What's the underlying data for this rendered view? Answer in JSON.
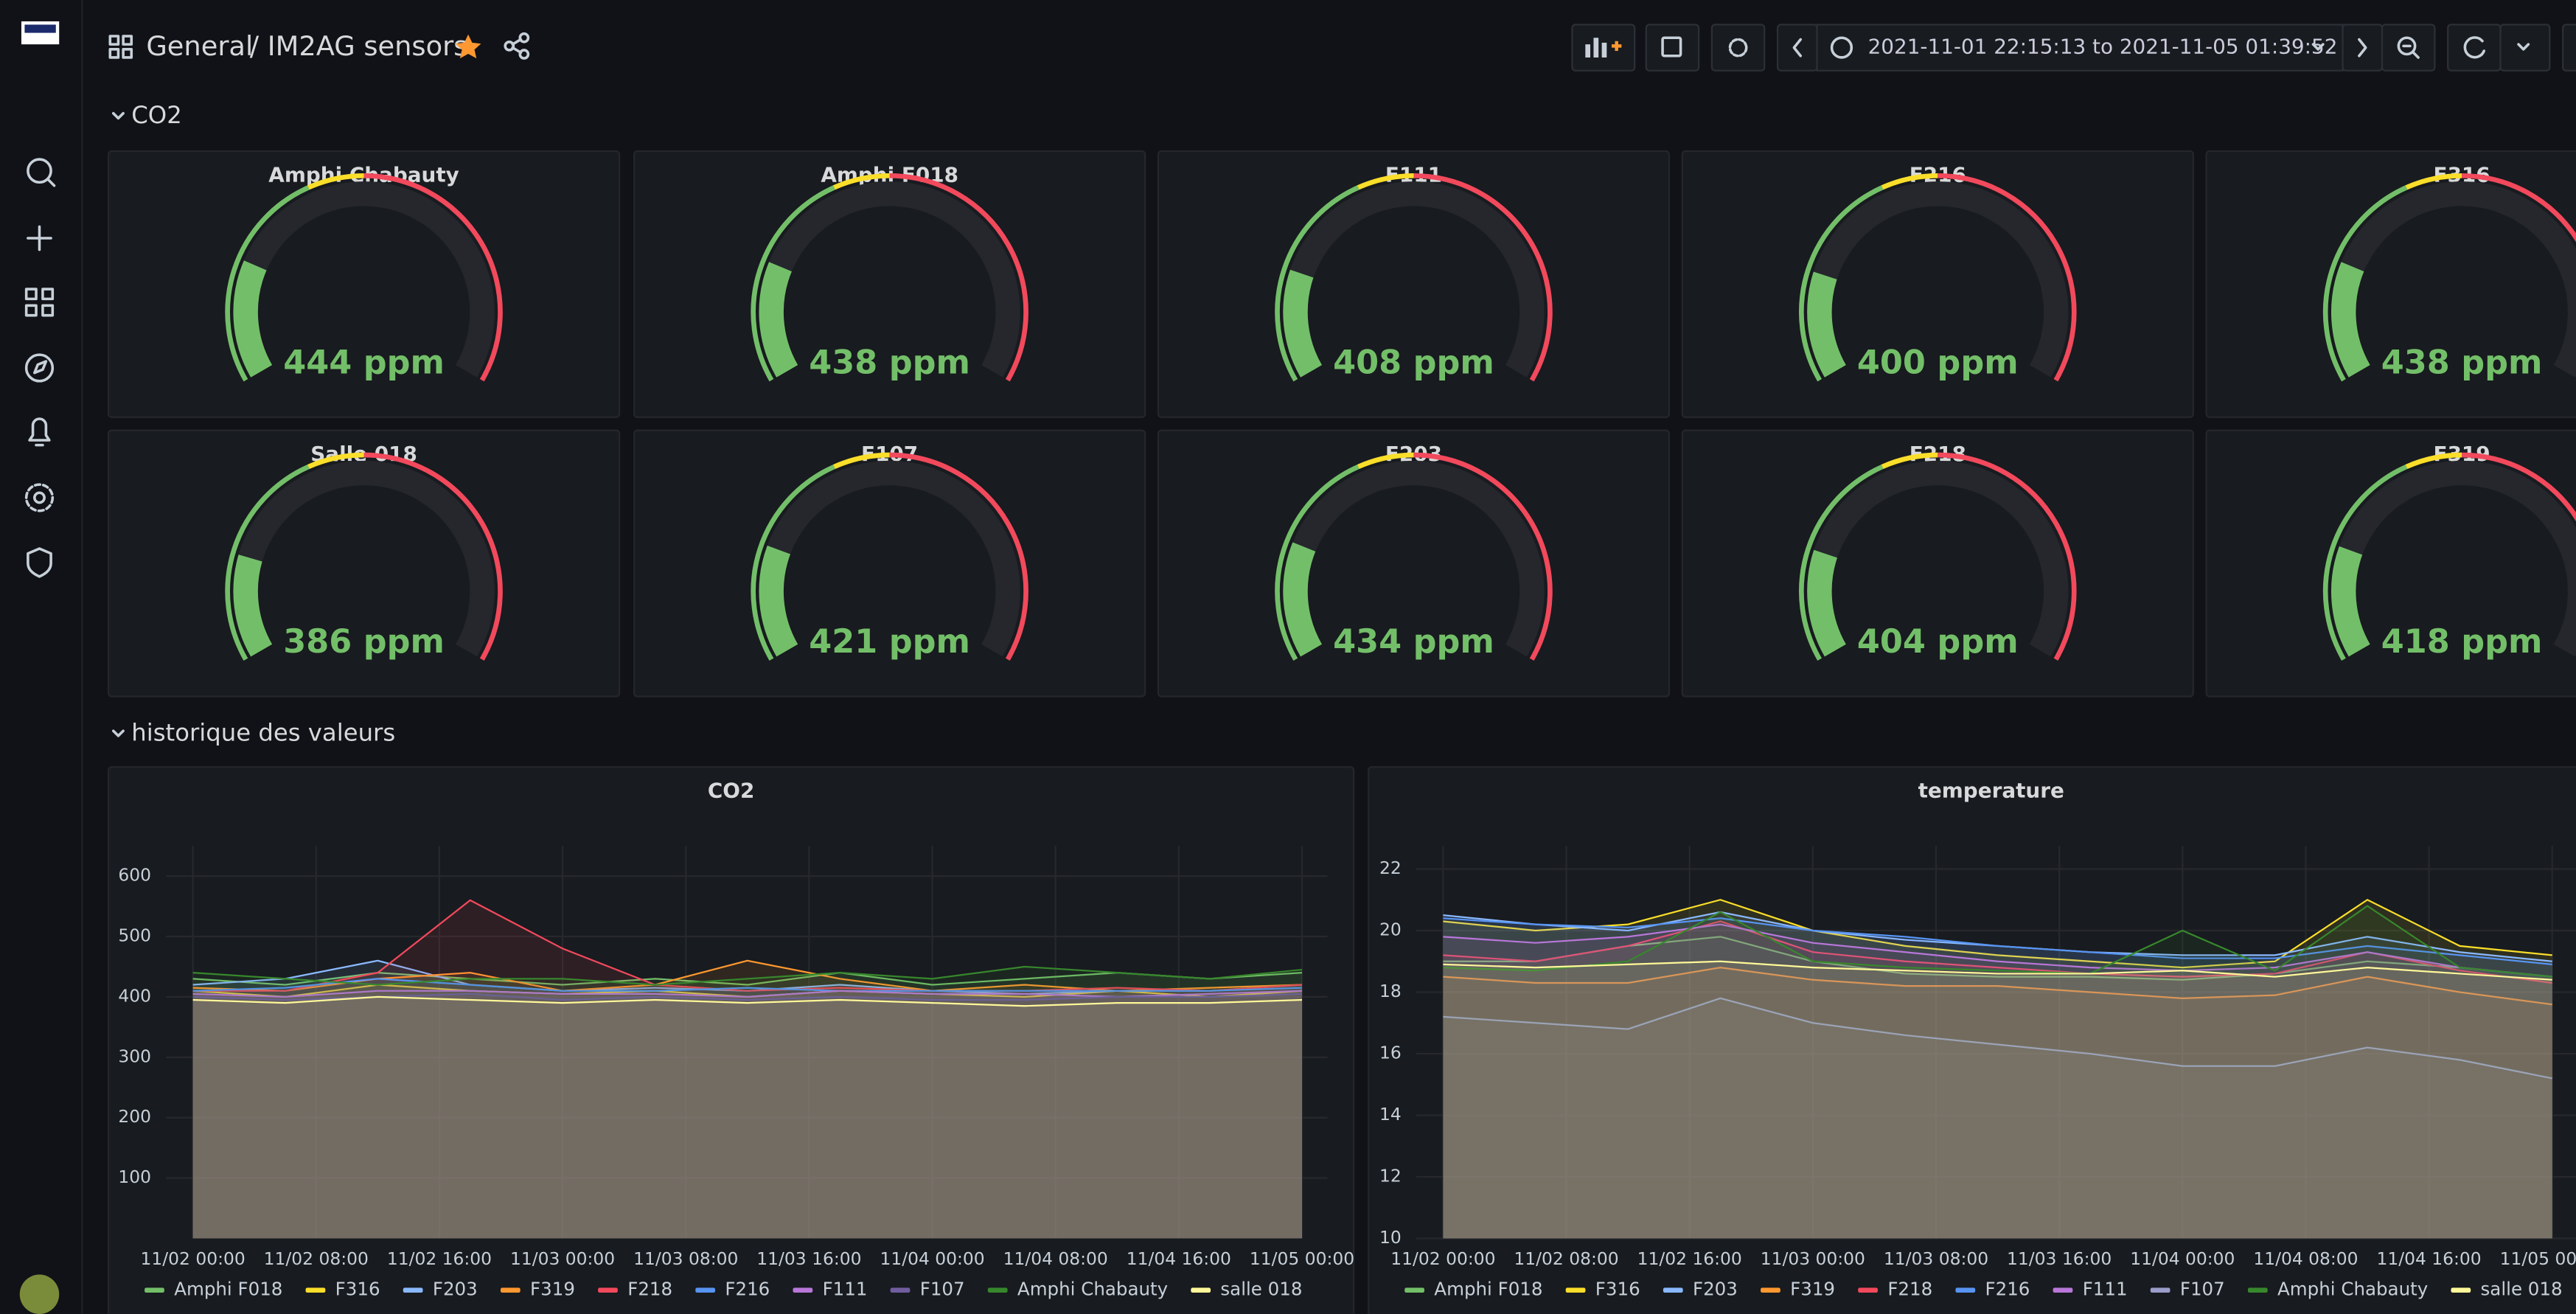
{
  "header": {
    "folder": "General",
    "title": "/ IM2AG sensors",
    "time_range": "2021-11-01 22:15:13 to 2021-11-05 01:39:52"
  },
  "rows": [
    {
      "title": "CO2"
    },
    {
      "title": "historique des valeurs"
    }
  ],
  "gauges": {
    "min": 0,
    "max": 2000,
    "track_color": "#25272c",
    "thresholds": [
      {
        "color": "#73bf69"
      },
      {
        "value": 800,
        "color": "#fade2a"
      },
      {
        "value": 1000,
        "color": "#f2495c"
      }
    ],
    "panels": [
      {
        "title": "Amphi Chabauty",
        "value": 444,
        "value_label": "444 ppm"
      },
      {
        "title": "Amphi F018",
        "value": 438,
        "value_label": "438 ppm"
      },
      {
        "title": "F111",
        "value": 408,
        "value_label": "408 ppm"
      },
      {
        "title": "F216",
        "value": 400,
        "value_label": "400 ppm"
      },
      {
        "title": "F316",
        "value": 438,
        "value_label": "438 ppm"
      },
      {
        "title": "Salle 018",
        "value": 386,
        "value_label": "386 ppm"
      },
      {
        "title": "F107",
        "value": 421,
        "value_label": "421 ppm"
      },
      {
        "title": "F203",
        "value": 434,
        "value_label": "434 ppm"
      },
      {
        "title": "F218",
        "value": 404,
        "value_label": "404 ppm"
      },
      {
        "title": "F319",
        "value": 418,
        "value_label": "418 ppm"
      }
    ]
  },
  "chart_data": [
    {
      "type": "line",
      "title": "CO2",
      "grid": true,
      "x": [
        "11/02 00:00",
        "11/02 06:00",
        "11/02 12:00",
        "11/02 18:00",
        "11/03 00:00",
        "11/03 06:00",
        "11/03 12:00",
        "11/03 18:00",
        "11/04 00:00",
        "11/04 06:00",
        "11/04 12:00",
        "11/04 18:00",
        "11/05 00:00"
      ],
      "xlim": [
        "11/01 22:15",
        "11/05 01:39"
      ],
      "xticks": [
        "11/02 00:00",
        "11/02 08:00",
        "11/02 16:00",
        "11/03 00:00",
        "11/03 08:00",
        "11/03 16:00",
        "11/04 00:00",
        "11/04 08:00",
        "11/04 16:00",
        "11/05 00:00"
      ],
      "ylim": [
        0,
        650
      ],
      "yticks": [
        100,
        200,
        300,
        400,
        500,
        600
      ],
      "series": [
        {
          "name": "Amphi F018",
          "color": "#73bf69",
          "values": [
            430,
            420,
            440,
            430,
            420,
            430,
            420,
            440,
            420,
            430,
            440,
            430,
            440
          ]
        },
        {
          "name": "F316",
          "color": "#fade2a",
          "values": [
            410,
            400,
            420,
            410,
            405,
            410,
            400,
            410,
            405,
            400,
            410,
            400,
            410
          ]
        },
        {
          "name": "F203",
          "color": "#8ab8ff",
          "values": [
            420,
            430,
            460,
            420,
            410,
            415,
            410,
            420,
            410,
            405,
            410,
            410,
            420
          ]
        },
        {
          "name": "F319",
          "color": "#ff9830",
          "values": [
            415,
            410,
            430,
            440,
            410,
            420,
            460,
            430,
            410,
            420,
            410,
            415,
            420
          ]
        },
        {
          "name": "F218",
          "color": "#f2495c",
          "values": [
            410,
            410,
            440,
            560,
            480,
            420,
            410,
            415,
            410,
            410,
            415,
            410,
            420
          ]
        },
        {
          "name": "F216",
          "color": "#5794f2",
          "values": [
            410,
            415,
            430,
            420,
            410,
            410,
            415,
            410,
            410,
            410,
            410,
            410,
            415
          ]
        },
        {
          "name": "F111",
          "color": "#b877d9",
          "values": [
            405,
            400,
            410,
            410,
            405,
            405,
            400,
            410,
            405,
            405,
            400,
            405,
            410
          ]
        },
        {
          "name": "F107",
          "color": "#705da0",
          "values": [
            400,
            395,
            400,
            405,
            395,
            400,
            395,
            400,
            395,
            395,
            400,
            400,
            405
          ]
        },
        {
          "name": "Amphi Chabauty",
          "color": "#37872d",
          "values": [
            440,
            430,
            420,
            430,
            430,
            420,
            430,
            440,
            430,
            450,
            440,
            430,
            445
          ]
        },
        {
          "name": "salle 018",
          "color": "#fff899",
          "values": [
            395,
            390,
            400,
            395,
            390,
            395,
            390,
            395,
            390,
            385,
            390,
            390,
            395
          ]
        }
      ]
    },
    {
      "type": "line",
      "title": "temperature",
      "grid": true,
      "x": [
        "11/02 00:00",
        "11/02 06:00",
        "11/02 12:00",
        "11/02 18:00",
        "11/03 00:00",
        "11/03 06:00",
        "11/03 12:00",
        "11/03 18:00",
        "11/04 00:00",
        "11/04 06:00",
        "11/04 12:00",
        "11/04 18:00",
        "11/05 00:00"
      ],
      "xlim": [
        "11/01 22:15",
        "11/05 01:39"
      ],
      "xticks": [
        "11/02 00:00",
        "11/02 08:00",
        "11/02 16:00",
        "11/03 00:00",
        "11/03 08:00",
        "11/03 16:00",
        "11/04 00:00",
        "11/04 08:00",
        "11/04 16:00",
        "11/05 00:00"
      ],
      "ylim": [
        10,
        22.75
      ],
      "yticks": [
        10,
        12,
        14,
        16,
        18,
        20,
        22
      ],
      "series": [
        {
          "name": "Amphi F018",
          "color": "#73bf69",
          "values": [
            19.0,
            19.0,
            19.5,
            19.8,
            19.0,
            18.6,
            18.5,
            18.5,
            18.4,
            18.6,
            19.0,
            18.8,
            18.5
          ]
        },
        {
          "name": "F316",
          "color": "#fade2a",
          "values": [
            20.3,
            20.0,
            20.2,
            21.0,
            20.0,
            19.5,
            19.2,
            19.0,
            18.8,
            19.0,
            21.0,
            19.5,
            19.2
          ]
        },
        {
          "name": "F203",
          "color": "#8ab8ff",
          "values": [
            20.5,
            20.2,
            20.0,
            20.6,
            20.0,
            19.7,
            19.5,
            19.3,
            19.2,
            19.2,
            19.8,
            19.3,
            19.0
          ]
        },
        {
          "name": "F319",
          "color": "#ff9830",
          "values": [
            18.5,
            18.3,
            18.3,
            18.8,
            18.4,
            18.2,
            18.2,
            18.0,
            17.8,
            17.9,
            18.5,
            18.0,
            17.6
          ]
        },
        {
          "name": "F218",
          "color": "#f2495c",
          "values": [
            19.2,
            19.0,
            19.5,
            20.3,
            19.3,
            19.0,
            18.8,
            18.6,
            18.5,
            18.6,
            19.3,
            18.7,
            18.3
          ]
        },
        {
          "name": "F216",
          "color": "#5794f2",
          "values": [
            20.4,
            20.2,
            20.1,
            20.4,
            20.0,
            19.8,
            19.5,
            19.3,
            19.1,
            19.1,
            19.5,
            19.2,
            18.9
          ]
        },
        {
          "name": "F111",
          "color": "#b877d9",
          "values": [
            19.8,
            19.6,
            19.8,
            20.2,
            19.6,
            19.3,
            19.0,
            18.8,
            18.7,
            18.8,
            19.3,
            18.8,
            18.5
          ]
        },
        {
          "name": "F107",
          "color": "#9a9cc9",
          "values": [
            17.2,
            17.0,
            16.8,
            17.8,
            17.0,
            16.6,
            16.3,
            16.0,
            15.6,
            15.6,
            16.2,
            15.8,
            15.2
          ]
        },
        {
          "name": "Amphi Chabauty",
          "color": "#37872d",
          "values": [
            18.8,
            18.7,
            19.0,
            20.6,
            19.0,
            18.8,
            18.7,
            18.6,
            20.0,
            18.7,
            20.8,
            18.8,
            18.5
          ]
        },
        {
          "name": "salle 018",
          "color": "#fff899",
          "values": [
            18.9,
            18.8,
            18.9,
            19.0,
            18.8,
            18.7,
            18.6,
            18.6,
            18.7,
            18.5,
            18.8,
            18.6,
            18.4
          ]
        }
      ]
    }
  ]
}
